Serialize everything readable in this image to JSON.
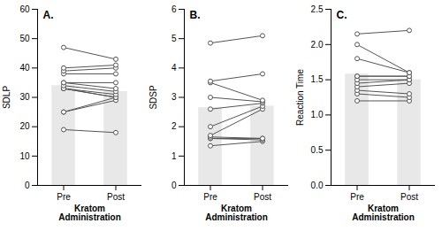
{
  "chart_data": [
    {
      "type": "bar",
      "annotation": "A.",
      "ylabel": "SDLP",
      "xlabel": "Kratom\nAdministration",
      "categories": [
        "Pre",
        "Post"
      ],
      "ylim": [
        0,
        60
      ],
      "yticks": [
        0,
        10,
        20,
        30,
        40,
        50,
        60
      ],
      "series": [
        {
          "type": "bar",
          "color": "#e8e8e8",
          "values": [
            34.0,
            32.0
          ]
        },
        {
          "type": "line",
          "color": "#555555",
          "marker": "circle",
          "values": [
            19,
            18
          ]
        },
        {
          "type": "line",
          "color": "#555555",
          "marker": "circle",
          "values": [
            25,
            29
          ]
        },
        {
          "type": "line",
          "color": "#555555",
          "marker": "circle",
          "values": [
            25,
            30
          ]
        },
        {
          "type": "line",
          "color": "#555555",
          "marker": "circle",
          "values": [
            33,
            30
          ]
        },
        {
          "type": "line",
          "color": "#555555",
          "marker": "circle",
          "values": [
            33,
            30
          ]
        },
        {
          "type": "line",
          "color": "#555555",
          "marker": "circle",
          "values": [
            33,
            31
          ]
        },
        {
          "type": "line",
          "color": "#555555",
          "marker": "circle",
          "values": [
            34,
            32
          ]
        },
        {
          "type": "line",
          "color": "#555555",
          "marker": "circle",
          "values": [
            35,
            33
          ]
        },
        {
          "type": "line",
          "color": "#555555",
          "marker": "circle",
          "values": [
            35,
            35
          ]
        },
        {
          "type": "line",
          "color": "#555555",
          "marker": "circle",
          "values": [
            38,
            38
          ]
        },
        {
          "type": "line",
          "color": "#555555",
          "marker": "circle",
          "values": [
            39,
            40
          ]
        },
        {
          "type": "line",
          "color": "#555555",
          "marker": "circle",
          "values": [
            40,
            41
          ]
        },
        {
          "type": "line",
          "color": "#555555",
          "marker": "circle",
          "values": [
            47,
            43
          ]
        }
      ]
    },
    {
      "type": "bar",
      "annotation": "B.",
      "ylabel": "SDSP",
      "xlabel": "Kratom\nAdministration",
      "categories": [
        "Pre",
        "Post"
      ],
      "ylim": [
        0,
        6
      ],
      "yticks": [
        0,
        1,
        2,
        3,
        4,
        5,
        6
      ],
      "series": [
        {
          "type": "bar",
          "color": "#e8e8e8",
          "values": [
            2.65,
            2.7
          ]
        },
        {
          "type": "line",
          "color": "#555555",
          "marker": "circle",
          "values": [
            1.35,
            1.5
          ]
        },
        {
          "type": "line",
          "color": "#555555",
          "marker": "circle",
          "values": [
            1.6,
            1.55
          ]
        },
        {
          "type": "line",
          "color": "#555555",
          "marker": "circle",
          "values": [
            1.6,
            1.6
          ]
        },
        {
          "type": "line",
          "color": "#555555",
          "marker": "circle",
          "values": [
            1.65,
            1.6
          ]
        },
        {
          "type": "line",
          "color": "#555555",
          "marker": "circle",
          "values": [
            1.7,
            2.6
          ]
        },
        {
          "type": "line",
          "color": "#555555",
          "marker": "circle",
          "values": [
            2.0,
            2.7
          ]
        },
        {
          "type": "line",
          "color": "#555555",
          "marker": "circle",
          "values": [
            2.6,
            2.8
          ]
        },
        {
          "type": "line",
          "color": "#555555",
          "marker": "circle",
          "values": [
            3.0,
            2.85
          ]
        },
        {
          "type": "line",
          "color": "#555555",
          "marker": "circle",
          "values": [
            3.5,
            2.9
          ]
        },
        {
          "type": "line",
          "color": "#555555",
          "marker": "circle",
          "values": [
            3.55,
            3.8
          ]
        },
        {
          "type": "line",
          "color": "#555555",
          "marker": "circle",
          "values": [
            4.85,
            5.1
          ]
        }
      ]
    },
    {
      "type": "bar",
      "annotation": "C.",
      "ylabel": "Reaction Time",
      "xlabel": "Kratom\nAdministration",
      "categories": [
        "Pre",
        "Post"
      ],
      "ylim": [
        0.0,
        2.5
      ],
      "yticks": [
        {
          "value": 0.0,
          "label": "0.0"
        },
        {
          "value": 0.5,
          "label": "0.5"
        },
        {
          "value": 1.0,
          "label": "1.0"
        },
        {
          "value": 1.5,
          "label": "1.5"
        },
        {
          "value": 2.0,
          "label": "2.0"
        },
        {
          "value": 2.5,
          "label": "2.5"
        }
      ],
      "series": [
        {
          "type": "bar",
          "color": "#e8e8e8",
          "values": [
            1.58,
            1.5
          ]
        },
        {
          "type": "line",
          "color": "#555555",
          "marker": "circle",
          "values": [
            1.2,
            1.2
          ]
        },
        {
          "type": "line",
          "color": "#555555",
          "marker": "circle",
          "values": [
            1.3,
            1.25
          ]
        },
        {
          "type": "line",
          "color": "#555555",
          "marker": "circle",
          "values": [
            1.35,
            1.3
          ]
        },
        {
          "type": "line",
          "color": "#555555",
          "marker": "circle",
          "values": [
            1.4,
            1.45
          ]
        },
        {
          "type": "line",
          "color": "#555555",
          "marker": "circle",
          "values": [
            1.45,
            1.5
          ]
        },
        {
          "type": "line",
          "color": "#555555",
          "marker": "circle",
          "values": [
            1.5,
            1.5
          ]
        },
        {
          "type": "line",
          "color": "#555555",
          "marker": "circle",
          "values": [
            1.55,
            1.55
          ]
        },
        {
          "type": "line",
          "color": "#555555",
          "marker": "circle",
          "values": [
            1.55,
            1.55
          ]
        },
        {
          "type": "line",
          "color": "#555555",
          "marker": "circle",
          "values": [
            1.8,
            1.6
          ]
        },
        {
          "type": "line",
          "color": "#555555",
          "marker": "circle",
          "values": [
            2.0,
            1.6
          ]
        },
        {
          "type": "line",
          "color": "#555555",
          "marker": "circle",
          "values": [
            2.15,
            2.2
          ]
        }
      ]
    }
  ]
}
